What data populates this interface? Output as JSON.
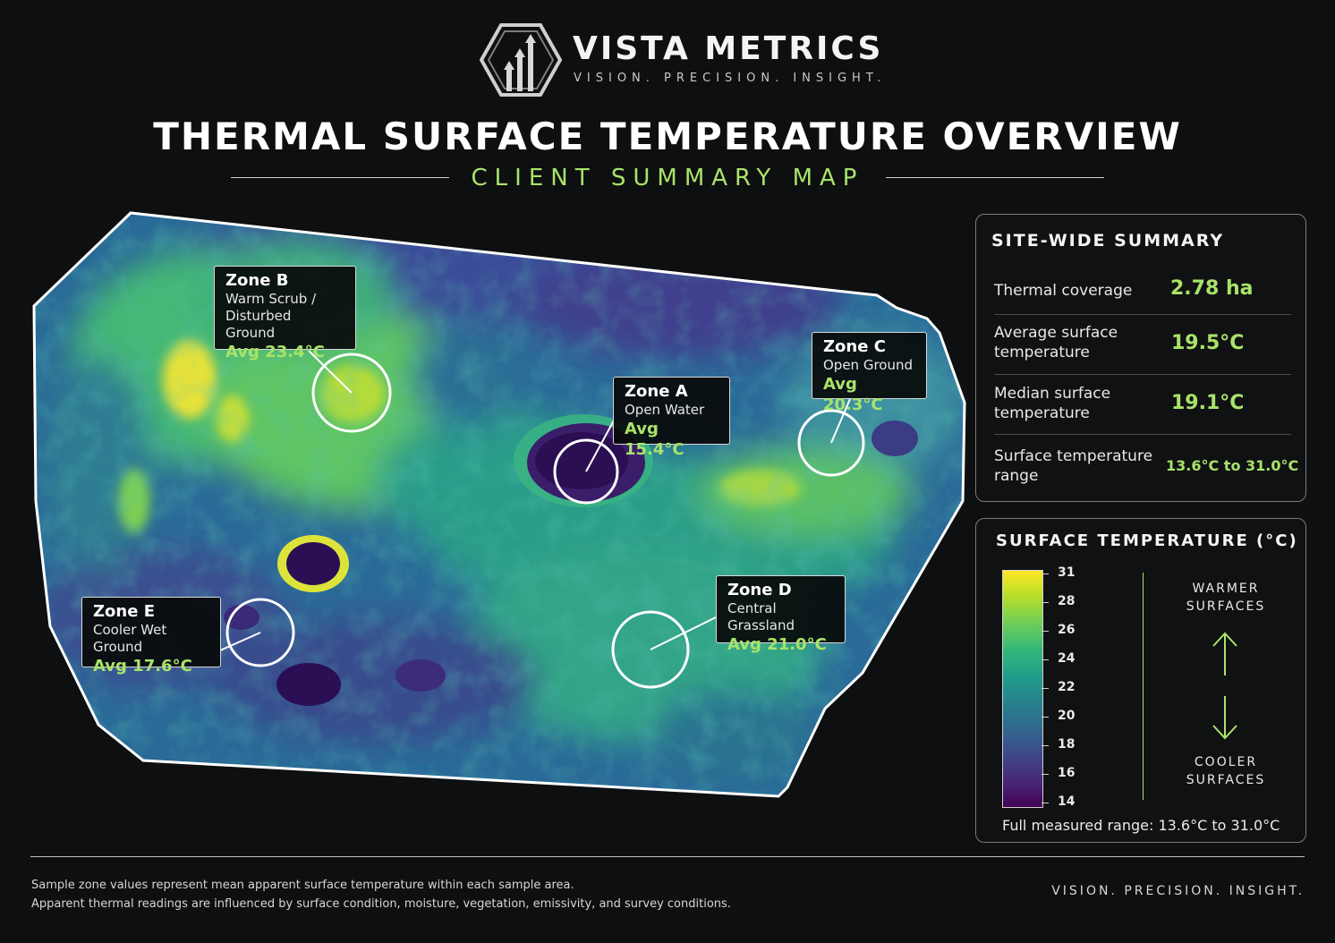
{
  "brand": {
    "name": "VISTA METRICS",
    "tagline": "VISION. PRECISION. INSIGHT."
  },
  "title": "THERMAL SURFACE TEMPERATURE OVERVIEW",
  "subtitle": "CLIENT SUMMARY MAP",
  "zones": [
    {
      "name": "Zone A",
      "description": "Open Water",
      "avg": "Avg 15.4°C"
    },
    {
      "name": "Zone B",
      "description": "Warm Scrub / Disturbed Ground",
      "avg": "Avg 23.4°C"
    },
    {
      "name": "Zone C",
      "description": "Open Ground",
      "avg": "Avg 20.3°C"
    },
    {
      "name": "Zone D",
      "description": "Central Grassland",
      "avg": "Avg 21.0°C"
    },
    {
      "name": "Zone E",
      "description": "Cooler Wet Ground",
      "avg": "Avg 17.6°C"
    }
  ],
  "summary": {
    "title": "SITE-WIDE SUMMARY",
    "rows": [
      {
        "label": "Thermal coverage",
        "value": "2.78 ha"
      },
      {
        "label": "Average surface temperature",
        "value": "19.5°C"
      },
      {
        "label": "Median surface temperature",
        "value": "19.1°C"
      },
      {
        "label": "Surface temperature range",
        "value": "13.6°C to 31.0°C"
      }
    ]
  },
  "legend": {
    "title": "SURFACE TEMPERATURE (°C)",
    "ticks": [
      "31",
      "28",
      "26",
      "24",
      "22",
      "20",
      "18",
      "16",
      "14"
    ],
    "warmer": "WARMER SURFACES",
    "cooler": "COOLER SURFACES",
    "range_note": "Full measured range: 13.6°C to 31.0°C",
    "colors": [
      "#fde725",
      "#b5de2b",
      "#6ece58",
      "#35b779",
      "#1f9e89",
      "#26828e",
      "#31688e",
      "#3e4989",
      "#482878",
      "#440154"
    ]
  },
  "footer": {
    "note_1": "Sample zone values represent mean apparent surface temperature within each sample area.",
    "note_2": "Apparent thermal readings are influenced by surface condition, moisture, vegetation, emissivity, and survey conditions.",
    "tagline": "VISION. PRECISION. INSIGHT."
  }
}
